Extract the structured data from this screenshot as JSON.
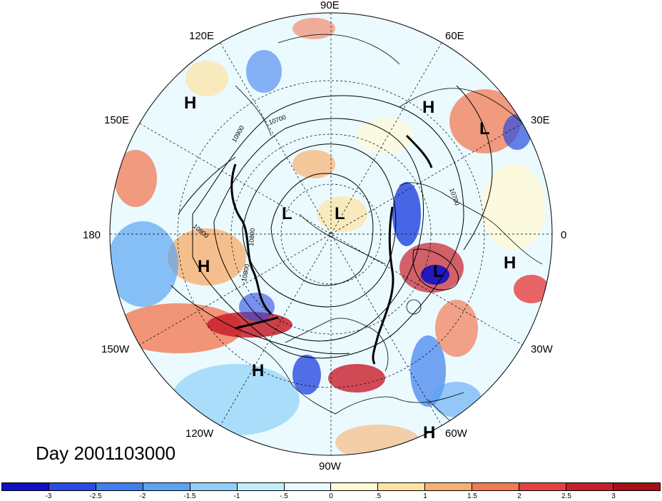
{
  "title": "Day 2001103000",
  "projection": "north-polar-stereographic",
  "longitude_labels": [
    {
      "id": "lon-90e",
      "text": "90E"
    },
    {
      "id": "lon-60e",
      "text": "60E"
    },
    {
      "id": "lon-30e",
      "text": "30E"
    },
    {
      "id": "lon-0",
      "text": "0"
    },
    {
      "id": "lon-30w",
      "text": "30W"
    },
    {
      "id": "lon-60w",
      "text": "60W"
    },
    {
      "id": "lon-90w",
      "text": "90W"
    },
    {
      "id": "lon-120w",
      "text": "120W"
    },
    {
      "id": "lon-150w",
      "text": "150W"
    },
    {
      "id": "lon-180",
      "text": "180"
    },
    {
      "id": "lon-150e",
      "text": "150E"
    },
    {
      "id": "lon-120e",
      "text": "120E"
    }
  ],
  "pressure_centers": [
    {
      "id": "h-120e",
      "label": "H"
    },
    {
      "id": "h-55e",
      "label": "H"
    },
    {
      "id": "l-35e",
      "label": "L"
    },
    {
      "id": "l-pole-left",
      "label": "L"
    },
    {
      "id": "l-pole-right",
      "label": "L"
    },
    {
      "id": "l-atlantic",
      "label": "L"
    },
    {
      "id": "h-africa",
      "label": "H"
    },
    {
      "id": "h-pacific",
      "label": "H"
    },
    {
      "id": "h-pacific-south",
      "label": "H"
    },
    {
      "id": "h-caribbean",
      "label": "H"
    }
  ],
  "contour_labels": [
    "10700",
    "10900",
    "10800",
    "10700",
    "10900",
    "10800"
  ],
  "colorbar": {
    "tick_labels": [
      "-3",
      "-2.5",
      "-2",
      "-1.5",
      "-1",
      "-.5",
      "0",
      ".5",
      "1",
      "1.5",
      "2",
      "2.5",
      "3"
    ],
    "colors": [
      "#1010c8",
      "#2a4be0",
      "#3f7ff0",
      "#5aa5f2",
      "#8fd0f8",
      "#c2eefa",
      "#eafaff",
      "#fff9d6",
      "#fde3a0",
      "#f8b070",
      "#f27a55",
      "#e64040",
      "#c81e2a",
      "#a50f15"
    ]
  },
  "colors": {
    "land_outline": "#000000",
    "contour": "#000000",
    "grid": "#000000"
  }
}
